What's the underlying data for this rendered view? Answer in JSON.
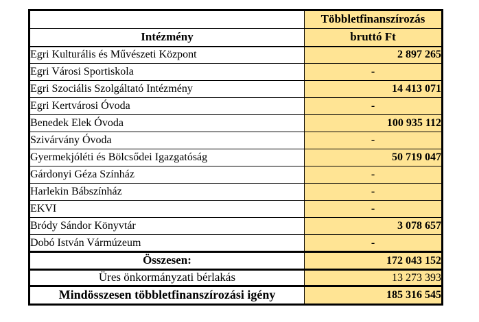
{
  "table": {
    "empty_marker": "-",
    "colors": {
      "highlight": "#FFE494",
      "border": "#000000"
    },
    "header": {
      "value_col_line1": "Többletfinanszírozás",
      "value_col_line2": "bruttó Ft",
      "name_col": "Intézmény"
    },
    "rows": [
      {
        "name": "Egri Kulturális és Művészeti Központ",
        "value": "2 897 265"
      },
      {
        "name": "Egri Városi Sportiskola",
        "value": "-"
      },
      {
        "name": "Egri Szociális Szolgáltató Intézmény",
        "value": "14 413 071"
      },
      {
        "name": "Egri Kertvárosi Óvoda",
        "value": "-"
      },
      {
        "name": "Benedek Elek Óvoda",
        "value": "100 935 112"
      },
      {
        "name": "Szivárvány Óvoda",
        "value": "-"
      },
      {
        "name": "Gyermekjóléti és Bölcsődei Igazgatóság",
        "value": "50 719 047"
      },
      {
        "name": "Gárdonyi Géza Színház",
        "value": "-"
      },
      {
        "name": "Harlekin Bábszínház",
        "value": "-"
      },
      {
        "name": "EKVI",
        "value": "-"
      },
      {
        "name": "Bródy Sándor Könyvtár",
        "value": "3 078 657"
      },
      {
        "name": "Dobó István Vármúzeum",
        "value": "-"
      }
    ],
    "summary": {
      "total_label": "Összesen:",
      "total_value": "172 043 152",
      "vacant_label": "Üres önkormányzati bérlakás",
      "vacant_value": "13 273 393",
      "grand_label": "Mindösszesen többletfinanszírozási igény",
      "grand_value": "185 316 545"
    }
  }
}
